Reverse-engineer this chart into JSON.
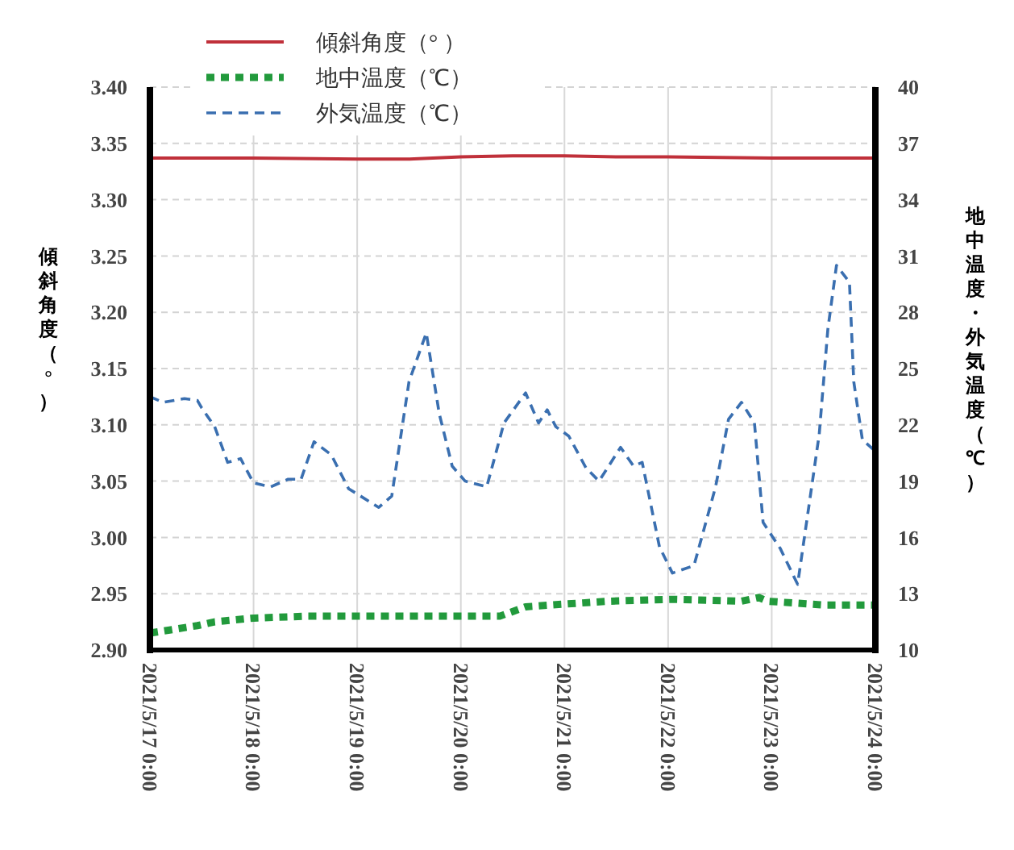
{
  "chart_data": {
    "type": "line",
    "ylabel": "傾斜角度（°）",
    "y2label": "地中温度・外気温度（℃）",
    "ylim": [
      2.9,
      3.4
    ],
    "yticks": [
      {
        "value": 2.9,
        "label": "2.90"
      },
      {
        "value": 2.95,
        "label": "2.95"
      },
      {
        "value": 3.0,
        "label": "3.00"
      },
      {
        "value": 3.05,
        "label": "3.05"
      },
      {
        "value": 3.1,
        "label": "3.10"
      },
      {
        "value": 3.15,
        "label": "3.15"
      },
      {
        "value": 3.2,
        "label": "3.20"
      },
      {
        "value": 3.25,
        "label": "3.25"
      },
      {
        "value": 3.3,
        "label": "3.30"
      },
      {
        "value": 3.35,
        "label": "3.35"
      },
      {
        "value": 3.4,
        "label": "3.40"
      }
    ],
    "y2lim": [
      10,
      40
    ],
    "y2ticks": [
      10,
      13,
      16,
      19,
      22,
      25,
      28,
      31,
      34,
      37,
      40
    ],
    "xlim": [
      "2021-05-17T00:00",
      "2021-05-24T00:00"
    ],
    "xticks": [
      {
        "value": "2021-05-17T00:00",
        "label": "2021/5/17 0:00"
      },
      {
        "value": "2021-05-18T00:00",
        "label": "2021/5/18 0:00"
      },
      {
        "value": "2021-05-19T00:00",
        "label": "2021/5/19 0:00"
      },
      {
        "value": "2021-05-20T00:00",
        "label": "2021/5/20 0:00"
      },
      {
        "value": "2021-05-21T00:00",
        "label": "2021/5/21 0:00"
      },
      {
        "value": "2021-05-22T00:00",
        "label": "2021/5/22 0:00"
      },
      {
        "value": "2021-05-23T00:00",
        "label": "2021/5/23 0:00"
      },
      {
        "value": "2021-05-24T00:00",
        "label": "2021/5/24 0:00"
      }
    ],
    "grid": true,
    "legend": "top left",
    "series": [
      {
        "name": "傾斜角度（°  ）",
        "color": "#c0303a",
        "line_style": "solid",
        "x": [
          "2021-05-17T00:00",
          "2021-05-18T00:00",
          "2021-05-19T00:00",
          "2021-05-19T12:00",
          "2021-05-20T00:00",
          "2021-05-20T12:00",
          "2021-05-21T00:00",
          "2021-05-21T12:00",
          "2021-05-22T00:00",
          "2021-05-23T00:00",
          "2021-05-24T00:00"
        ],
        "values": [
          3.337,
          3.337,
          3.336,
          3.336,
          3.338,
          3.339,
          3.339,
          3.338,
          3.338,
          3.337,
          3.337
        ]
      },
      {
        "name": "地中温度（℃）",
        "color": "#229a3c",
        "line_style": "dotted",
        "axis": "y2",
        "x": [
          "2021-05-17T00:00",
          "2021-05-17T11:00",
          "2021-05-17T15:00",
          "2021-05-18T00:00",
          "2021-05-18T12:00",
          "2021-05-19T01:00",
          "2021-05-19T14:00",
          "2021-05-20T09:00",
          "2021-05-20T15:00",
          "2021-05-20T21:00",
          "2021-05-21T10:00",
          "2021-05-22T01:00",
          "2021-05-22T17:00",
          "2021-05-22T21:00",
          "2021-05-22T23:00",
          "2021-05-23T12:00",
          "2021-05-24T00:00"
        ],
        "values": [
          10.9,
          11.3,
          11.5,
          11.7,
          11.8,
          11.8,
          11.8,
          11.8,
          12.3,
          12.4,
          12.6,
          12.7,
          12.6,
          12.8,
          12.6,
          12.4,
          12.4
        ]
      },
      {
        "name": "外気温度（℃）",
        "color": "#3a6fb0",
        "line_style": "dashed",
        "axis": "y2",
        "x": [
          "2021-05-17T00:00",
          "2021-05-17T03:00",
          "2021-05-17T08:00",
          "2021-05-17T11:00",
          "2021-05-17T12:00",
          "2021-05-17T15:00",
          "2021-05-17T18:00",
          "2021-05-17T21:00",
          "2021-05-18T00:00",
          "2021-05-18T04:00",
          "2021-05-18T08:00",
          "2021-05-18T11:00",
          "2021-05-18T14:00",
          "2021-05-18T18:00",
          "2021-05-18T22:00",
          "2021-05-19T05:00",
          "2021-05-19T08:00",
          "2021-05-19T12:00",
          "2021-05-19T16:00",
          "2021-05-19T19:00",
          "2021-05-19T22:00",
          "2021-05-20T01:00",
          "2021-05-20T06:00",
          "2021-05-20T10:00",
          "2021-05-20T15:00",
          "2021-05-20T18:00",
          "2021-05-20T20:00",
          "2021-05-20T22:00",
          "2021-05-21T01:00",
          "2021-05-21T05:00",
          "2021-05-21T08:00",
          "2021-05-21T13:00",
          "2021-05-21T16:00",
          "2021-05-21T18:00",
          "2021-05-21T22:00",
          "2021-05-22T01:00",
          "2021-05-22T06:00",
          "2021-05-22T11:00",
          "2021-05-22T14:00",
          "2021-05-22T17:00",
          "2021-05-22T20:00",
          "2021-05-22T22:00",
          "2021-05-23T02:00",
          "2021-05-23T06:00",
          "2021-05-23T11:00",
          "2021-05-23T13:00",
          "2021-05-23T15:00",
          "2021-05-23T18:00",
          "2021-05-23T19:00",
          "2021-05-23T21:00",
          "2021-05-24T00:00"
        ],
        "values": [
          23.5,
          23.2,
          23.4,
          23.3,
          22.9,
          21.9,
          20.0,
          20.2,
          18.9,
          18.7,
          19.1,
          19.1,
          21.1,
          20.4,
          18.6,
          17.6,
          18.2,
          24.3,
          26.9,
          22.6,
          19.8,
          19.0,
          18.7,
          22.1,
          23.7,
          22.1,
          22.8,
          21.9,
          21.4,
          19.7,
          19.0,
          20.8,
          19.8,
          20.0,
          15.5,
          14.1,
          14.5,
          18.7,
          22.3,
          23.2,
          22.1,
          16.8,
          15.4,
          13.5,
          21.5,
          27.1,
          30.5,
          29.6,
          24.3,
          21.2,
          20.6
        ]
      }
    ]
  }
}
